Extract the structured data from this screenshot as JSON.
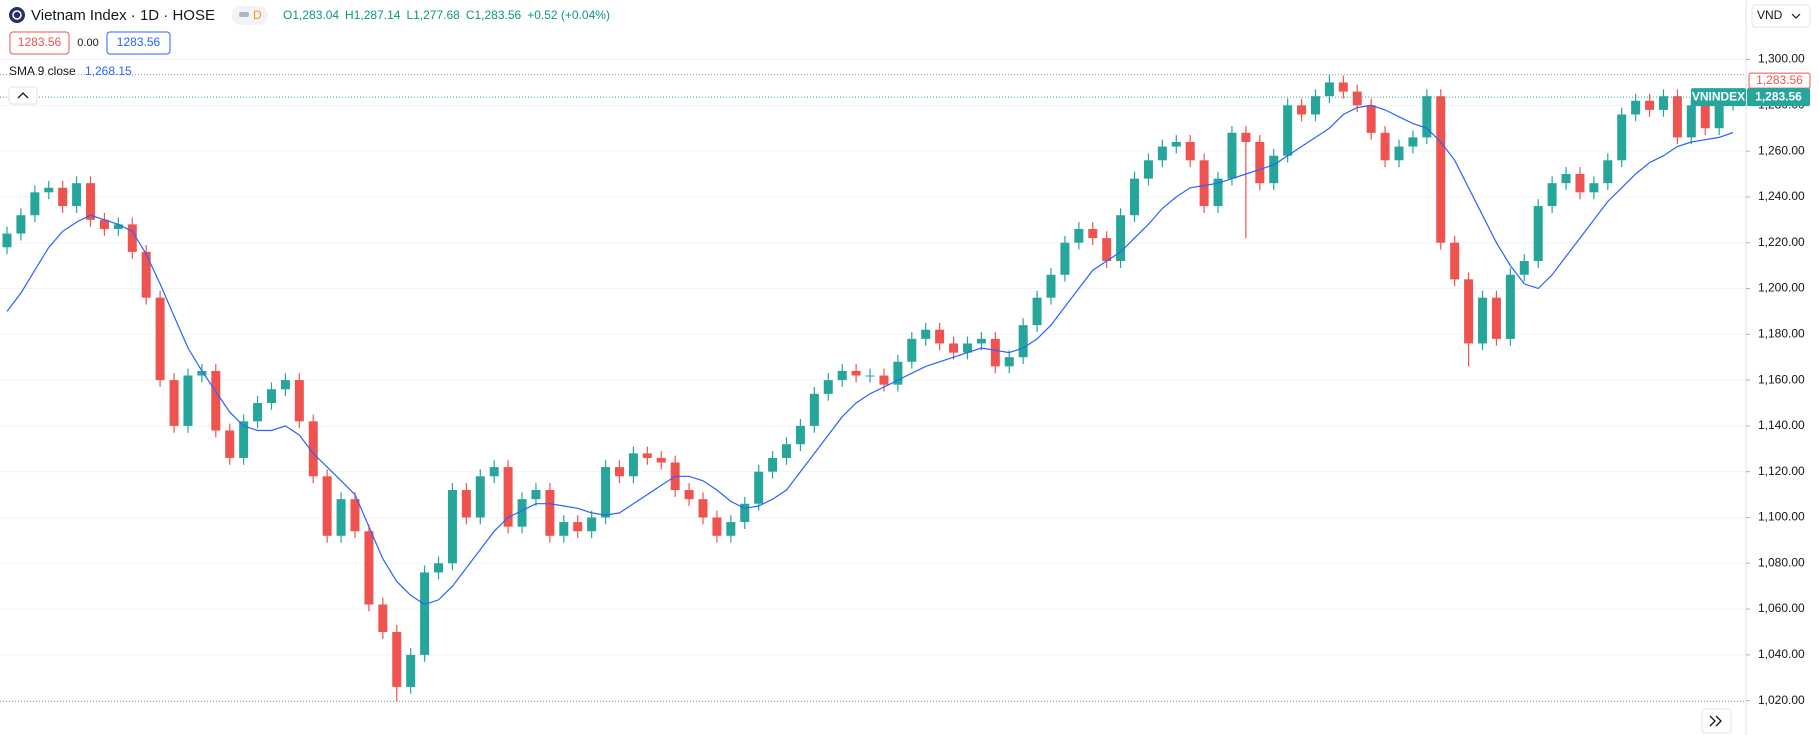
{
  "chart_data": {
    "type": "candlestick",
    "title": "Vietnam Index · 1D · HOSE",
    "interval_badge": "D",
    "ohlc_legend": [
      "O1,283.04",
      "H1,287.14",
      "L1,277.68",
      "C1,283.56",
      "+0.52 (+0.04%)"
    ],
    "quote_boxes": [
      "1283.56",
      "0.00",
      "1283.56"
    ],
    "indicator": {
      "name": "SMA 9 close",
      "value_label": "1,268.15",
      "color": "#2962ff",
      "values": [
        1190,
        1198,
        1208,
        1218,
        1225,
        1229,
        1232,
        1230,
        1228,
        1225,
        1215,
        1202,
        1188,
        1174,
        1164,
        1155,
        1146,
        1140,
        1138,
        1138,
        1140,
        1136,
        1128,
        1122,
        1116,
        1110,
        1096,
        1082,
        1072,
        1066,
        1062,
        1064,
        1070,
        1078,
        1086,
        1094,
        1100,
        1103,
        1106,
        1106,
        1105,
        1104,
        1102,
        1101,
        1102,
        1106,
        1110,
        1114,
        1118,
        1118,
        1116,
        1112,
        1107,
        1104,
        1105,
        1108,
        1112,
        1120,
        1128,
        1136,
        1144,
        1150,
        1154,
        1157,
        1160,
        1163,
        1166,
        1168,
        1170,
        1172,
        1174,
        1173,
        1172,
        1174,
        1178,
        1184,
        1192,
        1200,
        1208,
        1212,
        1216,
        1222,
        1228,
        1235,
        1240,
        1244,
        1245,
        1246,
        1248,
        1250,
        1252,
        1254,
        1258,
        1262,
        1266,
        1270,
        1276,
        1279,
        1280,
        1278,
        1275,
        1272,
        1270,
        1264,
        1256,
        1244,
        1232,
        1220,
        1210,
        1202,
        1200,
        1206,
        1214,
        1222,
        1230,
        1238,
        1244,
        1250,
        1255,
        1258,
        1262,
        1264,
        1265,
        1266,
        1268.15
      ]
    },
    "currency": "VND",
    "symbol_tag": "VNINDEX",
    "price_tags": [
      "1,283.56",
      "1,283.56"
    ],
    "up_color": "#26a69a",
    "down_color": "#ef5350",
    "open": [
      1218,
      1224,
      1232,
      1242,
      1244,
      1236,
      1246,
      1230,
      1226,
      1228,
      1216,
      1196,
      1160,
      1140,
      1162,
      1164,
      1138,
      1126,
      1142,
      1150,
      1156,
      1160,
      1142,
      1118,
      1092,
      1108,
      1094,
      1062,
      1050,
      1026,
      1040,
      1076,
      1080,
      1112,
      1100,
      1118,
      1122,
      1096,
      1108,
      1112,
      1092,
      1098,
      1094,
      1100,
      1122,
      1118,
      1128,
      1126,
      1124,
      1112,
      1108,
      1100,
      1092,
      1098,
      1106,
      1120,
      1126,
      1132,
      1140,
      1154,
      1160,
      1164,
      1162,
      1162,
      1158,
      1168,
      1178,
      1182,
      1176,
      1172,
      1176,
      1178,
      1166,
      1170,
      1184,
      1196,
      1206,
      1220,
      1226,
      1222,
      1212,
      1232,
      1248,
      1256,
      1262,
      1264,
      1256,
      1236,
      1248,
      1268,
      1264,
      1246,
      1258,
      1280,
      1276,
      1284,
      1290,
      1286,
      1280,
      1268,
      1256,
      1262,
      1266,
      1284,
      1220,
      1204,
      1176,
      1196,
      1178,
      1206,
      1212,
      1236,
      1246,
      1250,
      1242,
      1246,
      1256,
      1276,
      1282,
      1278,
      1284,
      1266,
      1280,
      1270,
      1283.04
    ],
    "high": [
      1227,
      1235,
      1245,
      1247,
      1247,
      1249,
      1249,
      1233,
      1231,
      1231,
      1219,
      1199,
      1163,
      1165,
      1167,
      1167,
      1141,
      1145,
      1153,
      1159,
      1163,
      1163,
      1145,
      1121,
      1111,
      1111,
      1097,
      1065,
      1053,
      1043,
      1079,
      1083,
      1115,
      1115,
      1121,
      1125,
      1125,
      1111,
      1115,
      1115,
      1101,
      1101,
      1103,
      1125,
      1125,
      1131,
      1131,
      1129,
      1127,
      1115,
      1111,
      1103,
      1101,
      1109,
      1123,
      1129,
      1135,
      1143,
      1157,
      1163,
      1167,
      1167,
      1165,
      1165,
      1171,
      1181,
      1185,
      1185,
      1179,
      1179,
      1181,
      1181,
      1173,
      1187,
      1199,
      1209,
      1223,
      1229,
      1229,
      1225,
      1235,
      1251,
      1259,
      1265,
      1267,
      1267,
      1259,
      1251,
      1271,
      1271,
      1267,
      1261,
      1283,
      1283,
      1287,
      1293.4,
      1293,
      1289,
      1283,
      1271,
      1265,
      1269,
      1287,
      1287,
      1223,
      1207,
      1199,
      1199,
      1209,
      1215,
      1239,
      1249,
      1253,
      1253,
      1249,
      1259,
      1279,
      1285,
      1285,
      1287,
      1287,
      1283,
      1283,
      1286,
      1287.14
    ],
    "low": [
      1215,
      1221,
      1229,
      1239,
      1233,
      1233,
      1227,
      1223,
      1223,
      1213,
      1193,
      1157,
      1137,
      1137,
      1159,
      1135,
      1123,
      1123,
      1139,
      1147,
      1153,
      1139,
      1115,
      1089,
      1089,
      1091,
      1059,
      1047,
      1019.7,
      1023,
      1037,
      1073,
      1077,
      1097,
      1097,
      1115,
      1093,
      1093,
      1105,
      1089,
      1089,
      1091,
      1091,
      1097,
      1115,
      1115,
      1123,
      1121,
      1109,
      1105,
      1097,
      1089,
      1089,
      1095,
      1103,
      1117,
      1123,
      1129,
      1137,
      1151,
      1157,
      1159,
      1159,
      1155,
      1155,
      1165,
      1175,
      1173,
      1169,
      1169,
      1173,
      1163,
      1163,
      1167,
      1181,
      1193,
      1203,
      1217,
      1219,
      1209,
      1209,
      1229,
      1245,
      1253,
      1259,
      1253,
      1233,
      1233,
      1245,
      1222,
      1243,
      1243,
      1255,
      1273,
      1273,
      1281,
      1283,
      1277,
      1265,
      1253,
      1253,
      1259,
      1263,
      1217,
      1201,
      1166,
      1173,
      1175,
      1175,
      1203,
      1209,
      1233,
      1243,
      1239,
      1239,
      1243,
      1253,
      1273,
      1275,
      1275,
      1263,
      1263,
      1267,
      1267,
      1277.68
    ],
    "close": [
      1224,
      1232,
      1242,
      1244,
      1236,
      1246,
      1230,
      1226,
      1228,
      1216,
      1196,
      1160,
      1140,
      1162,
      1164,
      1138,
      1126,
      1142,
      1150,
      1156,
      1160,
      1142,
      1118,
      1092,
      1108,
      1094,
      1062,
      1050,
      1026,
      1040,
      1076,
      1080,
      1112,
      1100,
      1118,
      1122,
      1096,
      1108,
      1112,
      1092,
      1098,
      1094,
      1100,
      1122,
      1118,
      1128,
      1126,
      1124,
      1112,
      1108,
      1100,
      1092,
      1098,
      1106,
      1120,
      1126,
      1132,
      1140,
      1154,
      1160,
      1164,
      1162,
      1162,
      1158,
      1168,
      1178,
      1182,
      1176,
      1172,
      1176,
      1178,
      1166,
      1170,
      1184,
      1196,
      1206,
      1220,
      1226,
      1222,
      1212,
      1232,
      1248,
      1256,
      1262,
      1264,
      1256,
      1236,
      1248,
      1268,
      1264,
      1246,
      1258,
      1280,
      1276,
      1284,
      1290,
      1286,
      1280,
      1268,
      1256,
      1262,
      1266,
      1284,
      1220,
      1204,
      1176,
      1196,
      1178,
      1206,
      1212,
      1236,
      1246,
      1250,
      1242,
      1246,
      1256,
      1276,
      1282,
      1278,
      1284,
      1266,
      1280,
      1270,
      1283.04,
      1283.56
    ],
    "ylim": [
      1005,
      1326
    ],
    "yticks": [
      {
        "value": 1020,
        "label": "1,020.00"
      },
      {
        "value": 1040,
        "label": "1,040.00"
      },
      {
        "value": 1060,
        "label": "1,060.00"
      },
      {
        "value": 1080,
        "label": "1,080.00"
      },
      {
        "value": 1100,
        "label": "1,100.00"
      },
      {
        "value": 1120,
        "label": "1,120.00"
      },
      {
        "value": 1140,
        "label": "1,140.00"
      },
      {
        "value": 1160,
        "label": "1,160.00"
      },
      {
        "value": 1180,
        "label": "1,180.00"
      },
      {
        "value": 1200,
        "label": "1,200.00"
      },
      {
        "value": 1220,
        "label": "1,220.00"
      },
      {
        "value": 1240,
        "label": "1,240.00"
      },
      {
        "value": 1260,
        "label": "1,260.00"
      },
      {
        "value": 1280,
        "label": "1,280.00"
      },
      {
        "value": 1300,
        "label": "1,300.00"
      }
    ],
    "grid": true
  }
}
